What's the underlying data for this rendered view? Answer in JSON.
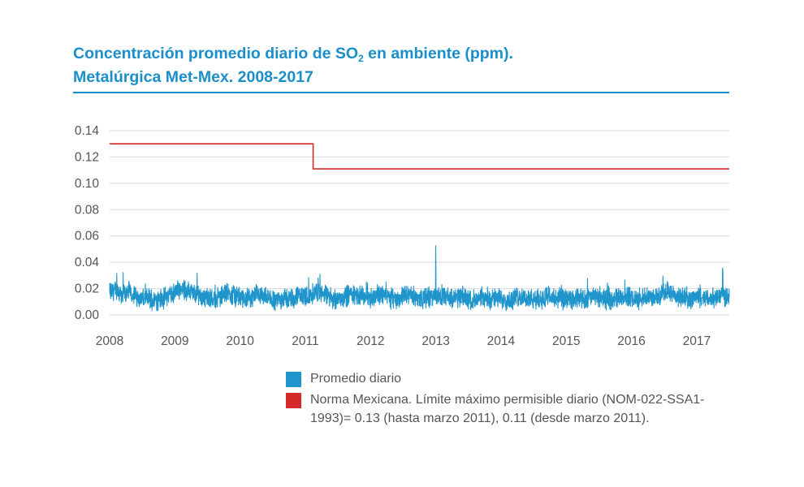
{
  "title": {
    "line1_pre": "Concentración promedio diario de SO",
    "line1_sub": "2",
    "line1_post": " en ambiente (ppm).",
    "line2": "Metalúrgica Met-Mex. 2008-2017"
  },
  "colors": {
    "accent": "#1a8fc9",
    "series_daily": "#1f95cc",
    "series_norm": "#d42a2a",
    "grid": "#d9d9d9",
    "text": "#555555"
  },
  "chart_data": {
    "type": "line",
    "title": "Concentración promedio diario de SO2 en ambiente (ppm). Metalúrgica Met-Mex. 2008-2017",
    "xlabel": "",
    "ylabel": "",
    "xlim": [
      2008,
      2017.5
    ],
    "ylim": [
      0,
      0.14
    ],
    "grid": true,
    "legend_position": "bottom",
    "x_ticks": [
      "2008",
      "2009",
      "2010",
      "2011",
      "2012",
      "2013",
      "2014",
      "2015",
      "2016",
      "2017"
    ],
    "y_ticks": [
      "0.14",
      "0.12",
      "0.10",
      "0.08",
      "0.06",
      "0.04",
      "0.02",
      "0.00"
    ],
    "series": [
      {
        "name": "Promedio diario",
        "color": "#1f95cc",
        "x": [
          2008.0,
          2008.1,
          2008.2,
          2008.3,
          2008.4,
          2008.5,
          2008.6,
          2008.7,
          2008.8,
          2008.9,
          2009.0,
          2009.1,
          2009.2,
          2009.3,
          2009.4,
          2009.5,
          2009.6,
          2009.7,
          2009.8,
          2009.9,
          2010.0,
          2010.1,
          2010.2,
          2010.3,
          2010.4,
          2010.5,
          2010.6,
          2010.7,
          2010.8,
          2010.9,
          2011.0,
          2011.1,
          2011.2,
          2011.3,
          2011.4,
          2011.5,
          2011.6,
          2011.7,
          2011.8,
          2011.9,
          2012.0,
          2012.1,
          2012.2,
          2012.3,
          2012.4,
          2012.5,
          2012.6,
          2012.7,
          2012.8,
          2012.9,
          2013.0,
          2013.1,
          2013.2,
          2013.3,
          2013.4,
          2013.5,
          2013.6,
          2013.7,
          2013.8,
          2013.9,
          2014.0,
          2014.1,
          2014.2,
          2014.3,
          2014.4,
          2014.5,
          2014.6,
          2014.7,
          2014.8,
          2014.9,
          2015.0,
          2015.1,
          2015.2,
          2015.3,
          2015.4,
          2015.5,
          2015.6,
          2015.7,
          2015.8,
          2015.9,
          2016.0,
          2016.1,
          2016.2,
          2016.3,
          2016.4,
          2016.5,
          2016.6,
          2016.7,
          2016.8,
          2016.9,
          2017.0,
          2017.1,
          2017.2,
          2017.3,
          2017.4,
          2017.5
        ],
        "y": [
          0.017,
          0.019,
          0.016,
          0.018,
          0.014,
          0.012,
          0.013,
          0.011,
          0.012,
          0.015,
          0.017,
          0.021,
          0.018,
          0.016,
          0.015,
          0.013,
          0.012,
          0.014,
          0.017,
          0.015,
          0.013,
          0.012,
          0.014,
          0.016,
          0.013,
          0.011,
          0.012,
          0.013,
          0.012,
          0.015,
          0.014,
          0.016,
          0.018,
          0.015,
          0.013,
          0.012,
          0.014,
          0.016,
          0.015,
          0.014,
          0.013,
          0.015,
          0.016,
          0.013,
          0.012,
          0.014,
          0.015,
          0.013,
          0.012,
          0.014,
          0.046,
          0.015,
          0.013,
          0.012,
          0.014,
          0.012,
          0.011,
          0.012,
          0.013,
          0.012,
          0.013,
          0.011,
          0.012,
          0.014,
          0.012,
          0.011,
          0.012,
          0.014,
          0.013,
          0.012,
          0.012,
          0.011,
          0.013,
          0.012,
          0.014,
          0.013,
          0.012,
          0.012,
          0.013,
          0.014,
          0.013,
          0.012,
          0.013,
          0.014,
          0.013,
          0.019,
          0.016,
          0.014,
          0.013,
          0.012,
          0.014,
          0.013,
          0.012,
          0.014,
          0.036,
          0.013
        ]
      },
      {
        "name": "Norma Mexicana. Límite máximo permisible diario (NOM-022-SSA1-1993)= 0.13 (hasta marzo 2011),  0.11 (desde marzo 2011).",
        "color": "#d42a2a",
        "x": [
          2008.0,
          2011.12,
          2011.12,
          2017.5
        ],
        "y": [
          0.13,
          0.13,
          0.111,
          0.111
        ]
      }
    ]
  },
  "legend": {
    "items": [
      {
        "label": "Promedio diario",
        "color": "#1f95cc"
      },
      {
        "label": "Norma Mexicana. Límite máximo permisible diario (NOM-022-SSA1-1993)= 0.13 (hasta marzo 2011),  0.11 (desde marzo 2011).",
        "color": "#d42a2a"
      }
    ]
  }
}
